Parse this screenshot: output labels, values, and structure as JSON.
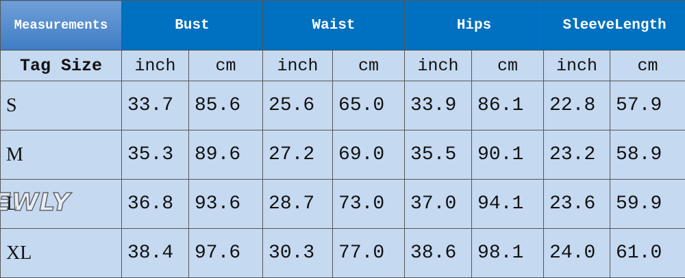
{
  "table": {
    "header": [
      "Measurements",
      "Bust",
      "Waist",
      "Hips",
      "SleeveLength"
    ],
    "subheader": [
      "Tag Size",
      "inch",
      "cm",
      "inch",
      "cm",
      "inch",
      "cm",
      "inch",
      "cm"
    ],
    "rows": [
      [
        "S",
        "33.7",
        "85.6",
        "25.6",
        "65.0",
        "33.9",
        "86.1",
        "22.8",
        "57.9"
      ],
      [
        "M",
        "35.3",
        "89.6",
        "27.2",
        "69.0",
        "35.5",
        "90.1",
        "23.2",
        "58.9"
      ],
      [
        "L",
        "36.8",
        "93.6",
        "28.7",
        "73.0",
        "37.0",
        "94.1",
        "23.6",
        "59.9"
      ],
      [
        "XL",
        "38.4",
        "97.6",
        "30.3",
        "77.0",
        "38.6",
        "98.1",
        "24.0",
        "61.0"
      ]
    ]
  },
  "watermark": "NEWLY"
}
